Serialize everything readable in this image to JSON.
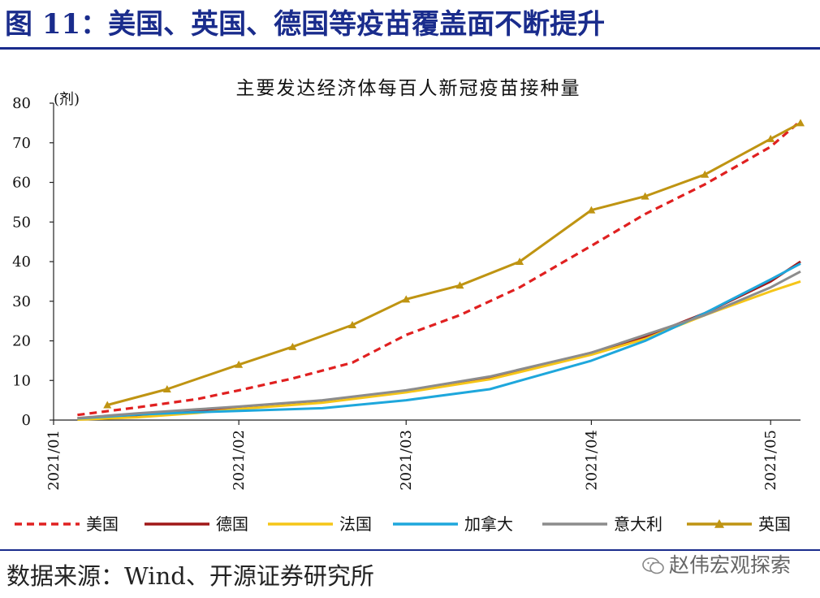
{
  "figure_title": "图 11：美国、英国、德国等疫苗覆盖面不断提升",
  "source_text": "数据来源：Wind、开源证券研究所",
  "watermark_text": "赵伟宏观探索",
  "watermark_icon": "wechat-icon",
  "chart_data": {
    "type": "line",
    "title": "主要发达经济体每百人新冠疫苗接种量",
    "ylabel": "(剂)",
    "xlabel": "",
    "ylim": [
      0,
      80
    ],
    "yticks": [
      0,
      10,
      20,
      30,
      40,
      50,
      60,
      70,
      80
    ],
    "xlim": [
      "2021-01-01",
      "2021-05-06"
    ],
    "xticks": [
      {
        "date": "2021-01-01",
        "label": "2021/01"
      },
      {
        "date": "2021-02-01",
        "label": "2021/02"
      },
      {
        "date": "2021-03-01",
        "label": "2021/03"
      },
      {
        "date": "2021-04-01",
        "label": "2021/04"
      },
      {
        "date": "2021-05-01",
        "label": "2021/05"
      }
    ],
    "grid": false,
    "legend_position": "bottom",
    "series": [
      {
        "name": "美国",
        "color": "#e02020",
        "dash": "dashed",
        "marker": "none",
        "points": [
          [
            "2021-01-05",
            1.3
          ],
          [
            "2021-01-15",
            3.2
          ],
          [
            "2021-01-25",
            5.3
          ],
          [
            "2021-02-01",
            7.5
          ],
          [
            "2021-02-10",
            10.5
          ],
          [
            "2021-02-20",
            14.5
          ],
          [
            "2021-03-01",
            21.5
          ],
          [
            "2021-03-10",
            26.5
          ],
          [
            "2021-03-20",
            33.5
          ],
          [
            "2021-04-01",
            44.0
          ],
          [
            "2021-04-10",
            52.0
          ],
          [
            "2021-04-20",
            59.5
          ],
          [
            "2021-05-01",
            69.0
          ],
          [
            "2021-05-06",
            75.5
          ]
        ]
      },
      {
        "name": "德国",
        "color": "#a01818",
        "dash": "solid",
        "marker": "none",
        "points": [
          [
            "2021-01-05",
            0.4
          ],
          [
            "2021-01-15",
            1.2
          ],
          [
            "2021-01-25",
            2.3
          ],
          [
            "2021-02-01",
            3.0
          ],
          [
            "2021-02-15",
            4.6
          ],
          [
            "2021-03-01",
            7.3
          ],
          [
            "2021-03-15",
            10.6
          ],
          [
            "2021-04-01",
            17.0
          ],
          [
            "2021-04-10",
            21.0
          ],
          [
            "2021-04-20",
            27.0
          ],
          [
            "2021-05-01",
            35.0
          ],
          [
            "2021-05-06",
            40.0
          ]
        ]
      },
      {
        "name": "法国",
        "color": "#f5c518",
        "dash": "solid",
        "marker": "none",
        "points": [
          [
            "2021-01-05",
            0.1
          ],
          [
            "2021-01-15",
            0.7
          ],
          [
            "2021-01-25",
            1.8
          ],
          [
            "2021-02-01",
            2.8
          ],
          [
            "2021-02-15",
            4.4
          ],
          [
            "2021-03-01",
            7.0
          ],
          [
            "2021-03-15",
            10.3
          ],
          [
            "2021-04-01",
            16.5
          ],
          [
            "2021-04-10",
            20.5
          ],
          [
            "2021-04-20",
            26.5
          ],
          [
            "2021-05-01",
            32.5
          ],
          [
            "2021-05-06",
            35.0
          ]
        ]
      },
      {
        "name": "加拿大",
        "color": "#1ea7dc",
        "dash": "solid",
        "marker": "none",
        "points": [
          [
            "2021-01-05",
            0.4
          ],
          [
            "2021-01-15",
            1.4
          ],
          [
            "2021-01-25",
            2.0
          ],
          [
            "2021-02-01",
            2.3
          ],
          [
            "2021-02-15",
            3.0
          ],
          [
            "2021-03-01",
            5.0
          ],
          [
            "2021-03-15",
            7.8
          ],
          [
            "2021-04-01",
            15.0
          ],
          [
            "2021-04-10",
            20.0
          ],
          [
            "2021-04-20",
            27.0
          ],
          [
            "2021-05-01",
            35.5
          ],
          [
            "2021-05-06",
            39.5
          ]
        ]
      },
      {
        "name": "意大利",
        "color": "#8c8c8c",
        "dash": "solid",
        "marker": "none",
        "points": [
          [
            "2021-01-05",
            0.5
          ],
          [
            "2021-01-15",
            1.7
          ],
          [
            "2021-01-25",
            2.7
          ],
          [
            "2021-02-01",
            3.4
          ],
          [
            "2021-02-15",
            5.0
          ],
          [
            "2021-03-01",
            7.5
          ],
          [
            "2021-03-15",
            11.0
          ],
          [
            "2021-04-01",
            17.0
          ],
          [
            "2021-04-10",
            21.5
          ],
          [
            "2021-04-20",
            26.5
          ],
          [
            "2021-05-01",
            33.5
          ],
          [
            "2021-05-06",
            37.5
          ]
        ]
      },
      {
        "name": "英国",
        "color": "#bf9412",
        "dash": "solid",
        "marker": "triangle",
        "points": [
          [
            "2021-01-10",
            3.8
          ],
          [
            "2021-01-20",
            7.8
          ],
          [
            "2021-02-01",
            14.0
          ],
          [
            "2021-02-10",
            18.5
          ],
          [
            "2021-02-20",
            24.0
          ],
          [
            "2021-03-01",
            30.5
          ],
          [
            "2021-03-10",
            34.0
          ],
          [
            "2021-03-20",
            40.0
          ],
          [
            "2021-04-01",
            53.0
          ],
          [
            "2021-04-10",
            56.5
          ],
          [
            "2021-04-20",
            62.0
          ],
          [
            "2021-05-01",
            71.0
          ],
          [
            "2021-05-06",
            75.0
          ]
        ]
      }
    ]
  }
}
